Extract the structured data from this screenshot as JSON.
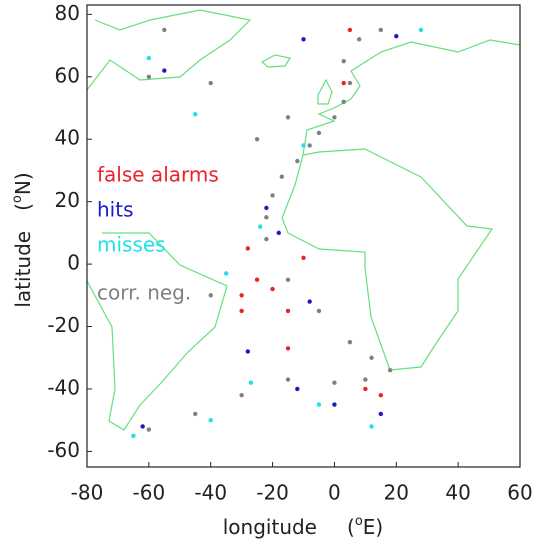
{
  "chart_data": {
    "type": "scatter",
    "xlim": [
      -80,
      60
    ],
    "ylim": [
      -65,
      83
    ],
    "xticks": [
      -80,
      -60,
      -40,
      -20,
      0,
      20,
      40,
      60
    ],
    "yticks": [
      -60,
      -40,
      -20,
      0,
      20,
      40,
      60,
      80
    ],
    "x_label": {
      "text": "longitude",
      "unit_open": "(",
      "unit_sup": "o",
      "unit_close": "E)"
    },
    "y_label": {
      "text": "latitude",
      "unit_open": "(",
      "unit_sup": "o",
      "unit_close": "N)"
    },
    "series": [
      {
        "name": "false alarms",
        "color": "#e8232a",
        "x": [
          -25,
          -30,
          -28,
          -20,
          -15,
          -10,
          -15,
          10,
          15,
          5,
          3,
          -30
        ],
        "y": [
          -5,
          -15,
          5,
          -8,
          -15,
          2,
          -27,
          -40,
          -42,
          75,
          58,
          -10
        ]
      },
      {
        "name": "hits",
        "color": "#1a1ac8",
        "x": [
          -22,
          -18,
          -8,
          0,
          15,
          -62,
          -55,
          -10,
          -12,
          20,
          -28
        ],
        "y": [
          18,
          10,
          -12,
          -45,
          -48,
          -52,
          62,
          72,
          -40,
          73,
          -28
        ]
      },
      {
        "name": "misses",
        "color": "#1ee0e8",
        "x": [
          -24,
          -35,
          -5,
          12,
          -65,
          -60,
          -45,
          28,
          -10,
          -27,
          -40
        ],
        "y": [
          12,
          -3,
          -45,
          -52,
          -55,
          66,
          48,
          75,
          38,
          -38,
          -50
        ]
      },
      {
        "name": "corr. neg.",
        "color": "#808080",
        "x": [
          -22,
          -20,
          -17,
          -12,
          -8,
          -5,
          0,
          3,
          5,
          3,
          8,
          -22,
          -15,
          -5,
          5,
          12,
          18,
          10,
          0,
          -15,
          -30,
          -45,
          -60,
          -40,
          -25,
          -15,
          -40,
          -55,
          -60,
          15
        ],
        "y": [
          15,
          22,
          28,
          33,
          38,
          42,
          47,
          52,
          58,
          65,
          72,
          8,
          -5,
          -15,
          -25,
          -30,
          -34,
          -37,
          -38,
          -37,
          -42,
          -48,
          -53,
          -10,
          40,
          47,
          58,
          75,
          60,
          75
        ]
      }
    ]
  }
}
